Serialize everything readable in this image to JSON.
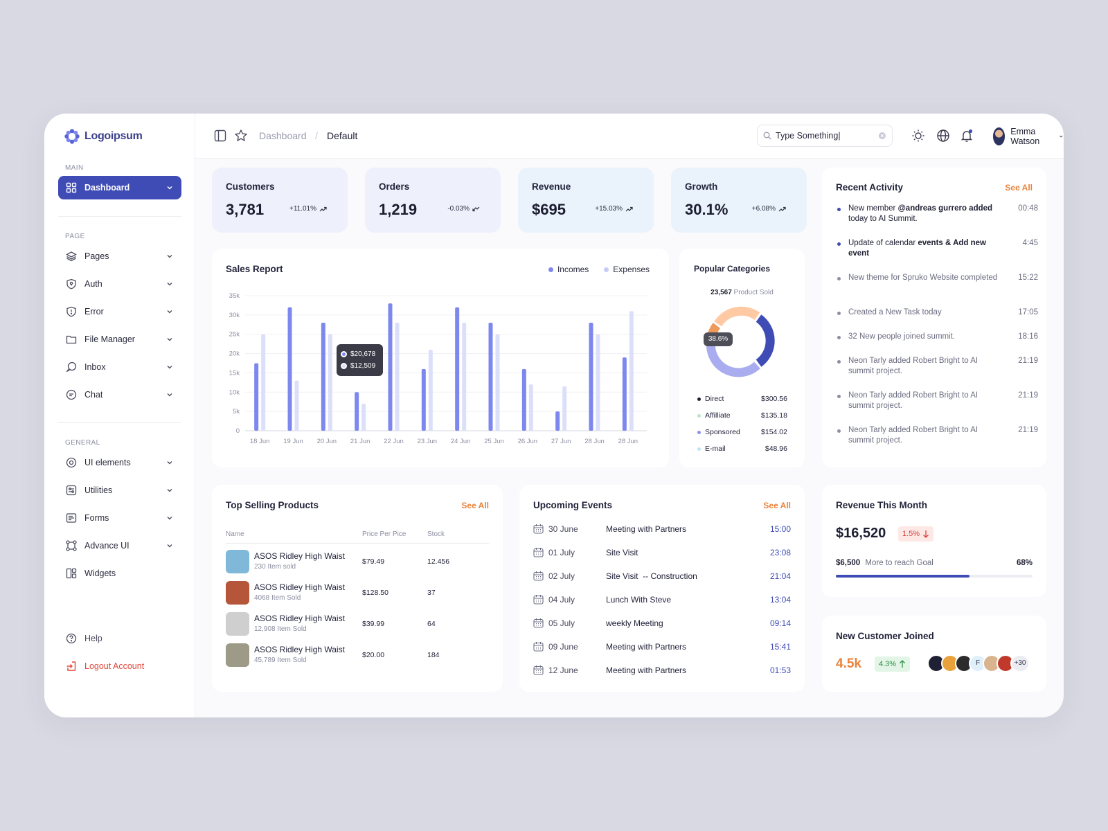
{
  "brand": {
    "name": "Logoipsum"
  },
  "sidebar": {
    "sections": {
      "main": "MAIN",
      "page": "PAGE",
      "general": "GENERAL"
    },
    "main_items": [
      {
        "label": "Dashboard",
        "icon": "grid-icon"
      }
    ],
    "page_items": [
      {
        "label": "Pages",
        "icon": "layers-icon"
      },
      {
        "label": "Auth",
        "icon": "lock-icon"
      },
      {
        "label": "Error",
        "icon": "alert-icon"
      },
      {
        "label": "File Manager",
        "icon": "folder-icon"
      },
      {
        "label": "Inbox",
        "icon": "inbox-icon"
      },
      {
        "label": "Chat",
        "icon": "chat-icon"
      }
    ],
    "general_items": [
      {
        "label": "UI elements",
        "icon": "target-icon"
      },
      {
        "label": "Utilities",
        "icon": "sliders-icon"
      },
      {
        "label": "Forms",
        "icon": "form-icon"
      },
      {
        "label": "Advance UI",
        "icon": "nodes-icon"
      },
      {
        "label": "Widgets",
        "icon": "widgets-icon"
      }
    ],
    "help": "Help",
    "logout": "Logout Account"
  },
  "topbar": {
    "breadcrumb": {
      "root": "Dashboard",
      "sep": "/",
      "current": "Default"
    },
    "search": {
      "value": "Type Something|"
    },
    "user": {
      "name": "Emma Watson"
    }
  },
  "stats": [
    {
      "label": "Customers",
      "value": "3,781",
      "change": "+11.01%",
      "bg": "#eef0fb"
    },
    {
      "label": "Orders",
      "value": "1,219",
      "change": "-0.03%",
      "bg": "#eef0fb"
    },
    {
      "label": "Revenue",
      "value": "$695",
      "change": "+15.03%",
      "bg": "#eaf3fc"
    },
    {
      "label": "Growth",
      "value": "30.1%",
      "change": "+6.08%",
      "bg": "#eaf3fc"
    }
  ],
  "sales_report": {
    "title": "Sales Report",
    "legend": [
      "Incomes",
      "Expenses"
    ],
    "tooltip": [
      "$20,678",
      "$12,509"
    ]
  },
  "chart_data": {
    "type": "bar",
    "categories": [
      "18 Jun",
      "19 Jun",
      "20 Jun",
      "21 Jun",
      "22 Jun",
      "23 Jun",
      "24 Jun",
      "25 Jun",
      "26 Jun",
      "27 Jun",
      "28 Jun",
      "28 Jun"
    ],
    "series": [
      {
        "name": "Incomes",
        "color": "#7d88ef",
        "values": [
          17500,
          32000,
          28000,
          10000,
          33000,
          16000,
          32000,
          28000,
          16000,
          5000,
          28000,
          19000
        ]
      },
      {
        "name": "Expenses",
        "color": "#dcdffa",
        "values": [
          25000,
          13000,
          25000,
          7000,
          28000,
          21000,
          28000,
          25000,
          12000,
          11500,
          25000,
          31000
        ]
      }
    ],
    "yticks": [
      "0",
      "5k",
      "10k",
      "15k",
      "20k",
      "25k",
      "30k",
      "35k"
    ],
    "ylim": [
      0,
      35000
    ]
  },
  "categories_card": {
    "title": "Popular Categories",
    "total": "23,567",
    "total_label": "Product Sold",
    "badge": "38.6%",
    "items": [
      {
        "label": "Direct",
        "value": "$300.56",
        "color": "#1f2033"
      },
      {
        "label": "Affilliate",
        "value": "$135.18",
        "color": "#b8e6c4"
      },
      {
        "label": "Sponsored",
        "value": "$154.02",
        "color": "#8d92e8"
      },
      {
        "label": "E-mail",
        "value": "$48.96",
        "color": "#bfe2f5"
      }
    ]
  },
  "activity": {
    "title": "Recent Activity",
    "see_all": "See All",
    "items": [
      {
        "pre": "New member ",
        "bold": "@andreas gurrero added",
        "post": " today to AI Summit.",
        "time": "00:48",
        "active": true
      },
      {
        "pre": "Update of calendar ",
        "bold": "events & Add new event",
        "post": "",
        "time": "4:45",
        "active": true
      },
      {
        "pre": "New theme for Spruko Website completed",
        "bold": "",
        "post": "",
        "time": "15:22",
        "active": false
      },
      {
        "pre": "Created a New Task today",
        "bold": "",
        "post": "",
        "time": "17:05",
        "active": false
      },
      {
        "pre": "32 New people joined summit.",
        "bold": "",
        "post": "",
        "time": "18:16",
        "active": false
      },
      {
        "pre": "Neon Tarly added Robert Bright to AI summit project.",
        "bold": "",
        "post": "",
        "time": "21:19",
        "active": false
      },
      {
        "pre": "Neon Tarly added Robert Bright to AI summit project.",
        "bold": "",
        "post": "",
        "time": "21:19",
        "active": false
      },
      {
        "pre": "Neon Tarly added Robert Bright to AI summit project.",
        "bold": "",
        "post": "",
        "time": "21:19",
        "active": false
      }
    ]
  },
  "products": {
    "title": "Top Selling Products",
    "see_all": "See All",
    "headers": [
      "Name",
      "Price Per Pice",
      "Stock"
    ],
    "rows": [
      {
        "name": "ASOS Ridley High Waist",
        "sold": "230 Item sold",
        "price": "$79.49",
        "stock": "12.456",
        "thumb": "#7fb8d8"
      },
      {
        "name": "ASOS Ridley High Waist",
        "sold": "4068 Item Sold",
        "price": "$128.50",
        "stock": "37",
        "thumb": "#b5553a"
      },
      {
        "name": "ASOS Ridley High Waist",
        "sold": "12,908 Item Sold",
        "price": "$39.99",
        "stock": "64",
        "thumb": "#cfcfcf"
      },
      {
        "name": "ASOS Ridley High Waist",
        "sold": "45,789 Item Sold",
        "price": "$20.00",
        "stock": "184",
        "thumb": "#9e9a88"
      }
    ]
  },
  "events": {
    "title": "Upcoming Events",
    "see_all": "See All",
    "rows": [
      {
        "date": "30 June",
        "name": "Meeting with Partners",
        "time": "15:00"
      },
      {
        "date": "01 July",
        "name": "Site Visit",
        "time": "23:08"
      },
      {
        "date": "02 July",
        "name": "Site Visit  -- Construction",
        "time": "21:04"
      },
      {
        "date": "04 July",
        "name": "Lunch With Steve",
        "time": "13:04"
      },
      {
        "date": "05 July",
        "name": "weekly Meeting",
        "time": "09:14"
      },
      {
        "date": "09 June",
        "name": "Meeting with Partners",
        "time": "15:41"
      },
      {
        "date": "12 June",
        "name": "Meeting with Partners",
        "time": "01:53"
      }
    ]
  },
  "revenue_month": {
    "title": "Revenue This Month",
    "value": "$16,520",
    "change": "1.5%",
    "goal_amount": "$6,500",
    "goal_text": "More to reach Goal",
    "goal_pct": "68%",
    "progress": 0.68
  },
  "new_customers": {
    "title": "New Customer Joined",
    "value": "4.5k",
    "change": "4.3%",
    "avatars": [
      "#1f2033",
      "#e9a23b",
      "#2c2c2c",
      "#dff0fb",
      "#d9b48f",
      "#c0392b"
    ],
    "avatar_letter": "F",
    "more": "+30"
  }
}
